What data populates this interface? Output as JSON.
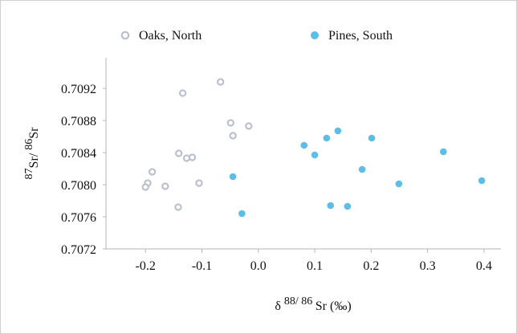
{
  "chart_data": {
    "type": "scatter",
    "title": "",
    "xlabel": "δ 88/ 86 Sr (‰)",
    "ylabel": "87Sr/ 86Sr",
    "xlim": [
      -0.27,
      0.43
    ],
    "ylim": [
      0.7072,
      0.70958
    ],
    "x_ticks": [
      -0.2,
      -0.1,
      0.0,
      0.1,
      0.2,
      0.3,
      0.4
    ],
    "x_tick_labels": [
      "-0.2",
      "-0.1",
      "0.0",
      "0.1",
      "0.2",
      "0.3",
      "0.4"
    ],
    "y_ticks": [
      0.7072,
      0.7076,
      0.708,
      0.7084,
      0.7088,
      0.7092
    ],
    "y_tick_labels": [
      "0.7072",
      "0.7076",
      "0.7080",
      "0.7084",
      "0.7088",
      "0.7092"
    ],
    "grid": false,
    "legend_position": "top",
    "series": [
      {
        "name": "Oaks, North",
        "marker": "open-circle",
        "color": "#b9bfcc",
        "points": [
          [
            -0.067,
            0.70928
          ],
          [
            -0.134,
            0.70914
          ],
          [
            -0.049,
            0.70877
          ],
          [
            -0.017,
            0.70873
          ],
          [
            -0.045,
            0.70861
          ],
          [
            -0.141,
            0.70839
          ],
          [
            -0.117,
            0.70834
          ],
          [
            -0.127,
            0.70833
          ],
          [
            -0.188,
            0.70816
          ],
          [
            -0.105,
            0.70802
          ],
          [
            -0.196,
            0.70802
          ],
          [
            -0.165,
            0.70798
          ],
          [
            -0.2,
            0.70797
          ],
          [
            -0.142,
            0.70772
          ]
        ]
      },
      {
        "name": "Pines, South",
        "marker": "filled-circle",
        "color": "#5bbde8",
        "points": [
          [
            0.141,
            0.70867
          ],
          [
            0.121,
            0.70858
          ],
          [
            0.201,
            0.70858
          ],
          [
            0.081,
            0.70849
          ],
          [
            0.328,
            0.70841
          ],
          [
            0.1,
            0.70837
          ],
          [
            0.184,
            0.70819
          ],
          [
            -0.045,
            0.7081
          ],
          [
            0.396,
            0.70805
          ],
          [
            0.249,
            0.70801
          ],
          [
            0.128,
            0.70774
          ],
          [
            0.158,
            0.70773
          ],
          [
            -0.029,
            0.70764
          ]
        ]
      }
    ]
  }
}
